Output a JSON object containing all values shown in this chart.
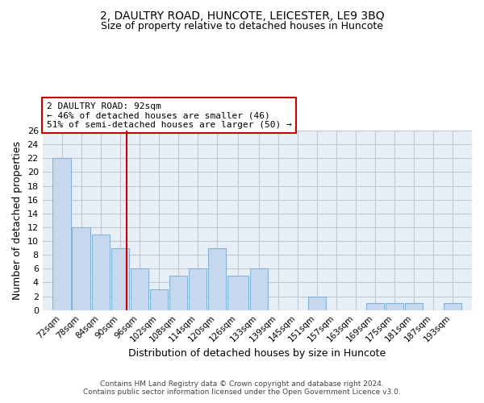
{
  "title": "2, DAULTRY ROAD, HUNCOTE, LEICESTER, LE9 3BQ",
  "subtitle": "Size of property relative to detached houses in Huncote",
  "xlabel": "Distribution of detached houses by size in Huncote",
  "ylabel": "Number of detached properties",
  "bar_labels": [
    "72sqm",
    "78sqm",
    "84sqm",
    "90sqm",
    "96sqm",
    "102sqm",
    "108sqm",
    "114sqm",
    "120sqm",
    "126sqm",
    "133sqm",
    "139sqm",
    "145sqm",
    "151sqm",
    "157sqm",
    "163sqm",
    "169sqm",
    "175sqm",
    "181sqm",
    "187sqm",
    "193sqm"
  ],
  "bar_values": [
    22,
    12,
    11,
    9,
    6,
    3,
    5,
    6,
    9,
    5,
    6,
    0,
    0,
    2,
    0,
    0,
    1,
    1,
    1,
    0,
    1
  ],
  "bar_left_edges": [
    69,
    75,
    81,
    87,
    93,
    99,
    105,
    111,
    117,
    123,
    130,
    136,
    142,
    148,
    154,
    160,
    166,
    172,
    178,
    184,
    190
  ],
  "bar_widths": [
    6,
    6,
    6,
    6,
    6,
    6,
    6,
    6,
    6,
    7,
    6,
    6,
    6,
    6,
    6,
    6,
    6,
    6,
    6,
    6,
    6
  ],
  "bar_color": "#c5d8ed",
  "bar_edge_color": "#7fafd4",
  "vline_x": 92,
  "vline_color": "#cc0000",
  "ylim": [
    0,
    26
  ],
  "yticks": [
    0,
    2,
    4,
    6,
    8,
    10,
    12,
    14,
    16,
    18,
    20,
    22,
    24,
    26
  ],
  "grid_color": "#c0c8d8",
  "annotation_line1": "2 DAULTRY ROAD: 92sqm",
  "annotation_line2": "← 46% of detached houses are smaller (46)",
  "annotation_line3": "51% of semi-detached houses are larger (50) →",
  "annotation_box_color": "#ffffff",
  "annotation_box_edge": "#cc0000",
  "footnote1": "Contains HM Land Registry data © Crown copyright and database right 2024.",
  "footnote2": "Contains public sector information licensed under the Open Government Licence v3.0.",
  "bg_color": "#e8eef5",
  "plot_bg_color": "#dde6f0",
  "title_fontsize": 10,
  "subtitle_fontsize": 9,
  "xlim_left": 66,
  "xlim_right": 199
}
